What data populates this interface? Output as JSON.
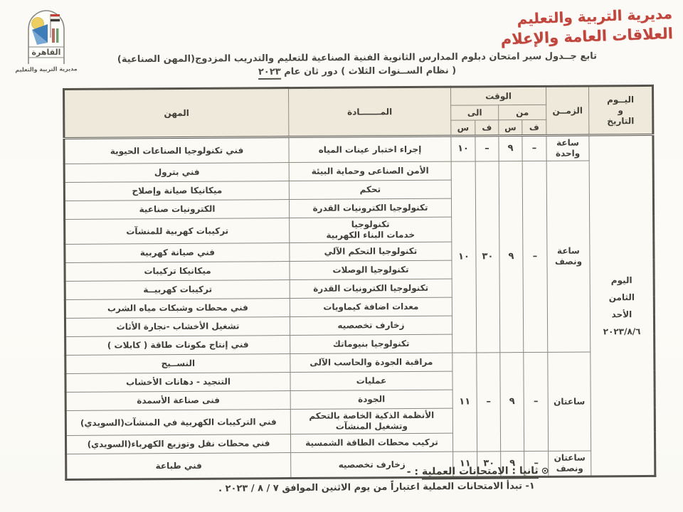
{
  "logo": {
    "city_label": "القاهرة",
    "caption": "مديرية التربية والتعليم",
    "colors": {
      "sun": "#edce63",
      "sail": "#3f7cba",
      "flag_red": "#bf4038",
      "outline": "#8a887e"
    }
  },
  "letterhead": {
    "line1": "مديرية التربية والتعليم",
    "line2": "العلاقات العامة والإعلام",
    "color": "#c0453c"
  },
  "title": {
    "line1": "تابع جــدول سير امتحان دبلوم المدارس الثانوية الفنية الصناعية للتعليم والتدريب المزدوج(المهن الصناعية)",
    "line2_prefix": "( نظام الســنوات الثلاث ) دور ثان عام ",
    "line2_underlined": "٢٠٢٣"
  },
  "table": {
    "headers": {
      "professions": "المهن",
      "subject": "المـــــــادة",
      "time": "الوقت",
      "to": "الى",
      "from": "من",
      "hour": "س",
      "minute": "ف",
      "duration": "الزمــن",
      "day_date": "اليــوم\nو\nالتاريخ"
    },
    "day_cell": [
      "اليوم",
      "الثامن",
      "الأحد",
      "٢٠٢٣/٨/٦"
    ],
    "groups": [
      {
        "duration": "ساعة واحدة",
        "to_hour": "١٠",
        "to_min": "–",
        "from_hour": "٩",
        "from_min": "–",
        "rows": [
          {
            "profession": "فني تكنولوجيا الصناعات الحيوية",
            "subject": "إجراء اختبار عينات المياه"
          }
        ]
      },
      {
        "duration": "ساعة\nونصف",
        "to_hour": "١٠",
        "to_min": "٣٠",
        "from_hour": "٩",
        "from_min": "–",
        "rows": [
          {
            "profession": "فني بترول",
            "subject": "الأمن الصناعى وحماية البيئة"
          },
          {
            "profession": "ميكانيكا صيانة وإصلاح",
            "subject": "تحكم"
          },
          {
            "profession": "الكترونيات صناعية",
            "subject": "تكنولوجيا الكترونيات القدرة"
          },
          {
            "profession": "تركيبات كهربية للمنشآت",
            "subject": "تكنولوجيا\nخدمات البناء الكهربية"
          },
          {
            "profession": "فني صيانة كهربية",
            "subject": "تكنولوجيا التحكم الآلي"
          },
          {
            "profession": "ميكانيكا تركيبات",
            "subject": "تكنولوجيا الوصلات"
          },
          {
            "profession": "تركيبات كهربيــة",
            "subject": "تكنولوجيا الكترونيات القدرة"
          },
          {
            "profession": "فني محطات وشبكات مياه الشرب",
            "subject": "معدات اضافة كيماويات"
          },
          {
            "profession": "تشغيل الأخشاب -نجارة الأثاث",
            "subject": "زخارف تخصصيه"
          },
          {
            "profession": "فني إنتاج مكونات طاقة ( كابلات )",
            "subject": "تكنولوجيا بنيوماتك"
          }
        ]
      },
      {
        "duration": "ساعتان",
        "to_hour": "١١",
        "to_min": "–",
        "from_hour": "٩",
        "from_min": "–",
        "rows": [
          {
            "profession": "النســيج",
            "subject": "مراقبة الجودة والحاسب الآلى"
          },
          {
            "profession": "التنجيد - دهانات الأخشاب",
            "subject": "عمليات"
          },
          {
            "profession": "فنى صناعة الأسمدة",
            "subject": "الجودة"
          },
          {
            "profession": "فني التركيبات الكهربية في المنشآت(السويدي)",
            "subject": "الأنظمة الذكية الخاصة بالتحكم\nوتشغيل المنشآت"
          },
          {
            "profession": "فني محطات نقل وتوزيع الكهرباء(السويدي)",
            "subject": "تركيب محطات الطاقة الشمسية"
          }
        ]
      },
      {
        "duration": "ساعتان\nونصف",
        "to_hour": "١١",
        "to_min": "٣٠",
        "from_hour": "٩",
        "from_min": "–",
        "rows": [
          {
            "profession": "فني طباعة",
            "subject": "زخارف تخصصيه"
          }
        ]
      }
    ]
  },
  "footer": {
    "heading_mark": "⊙",
    "heading_underlined": "ثانيا : الامتحانات العملية",
    "heading_tail": " : -",
    "note1": "١- تبدأ الامتحانات العملية اعتباراً من يوم الاثنين الموافق ٧ / ٨ / ٢٠٢٣ ."
  }
}
